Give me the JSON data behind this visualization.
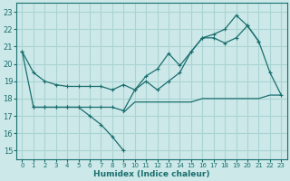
{
  "bg_color": "#cce8e8",
  "grid_color": "#aad4d4",
  "line_color": "#1a6e6e",
  "xlabel": "Humidex (Indice chaleur)",
  "xlim": [
    -0.5,
    23.5
  ],
  "ylim": [
    14.5,
    23.5
  ],
  "yticks": [
    15,
    16,
    17,
    18,
    19,
    20,
    21,
    22,
    23
  ],
  "xticks": [
    0,
    1,
    2,
    3,
    4,
    5,
    6,
    7,
    8,
    9,
    10,
    11,
    12,
    13,
    14,
    15,
    16,
    17,
    18,
    19,
    20,
    21,
    22,
    23
  ],
  "series1_x": [
    0,
    1,
    2,
    3,
    4,
    5,
    6,
    7,
    8,
    9,
    10,
    11,
    12,
    13,
    14,
    15,
    16,
    17,
    18,
    19,
    20,
    21,
    22,
    23
  ],
  "series1_y": [
    20.7,
    19.5,
    19.0,
    18.8,
    18.7,
    18.7,
    18.7,
    18.7,
    18.5,
    18.8,
    18.5,
    19.0,
    18.5,
    19.0,
    19.5,
    20.7,
    21.5,
    21.5,
    21.2,
    21.5,
    22.2,
    21.3,
    19.5,
    18.2
  ],
  "series2_x": [
    0,
    1,
    2,
    3,
    4,
    5,
    6,
    7,
    8,
    9
  ],
  "series2_y": [
    20.7,
    17.5,
    17.5,
    17.5,
    17.5,
    17.5,
    17.0,
    16.5,
    15.8,
    15.0
  ],
  "series3_x": [
    9,
    10,
    11,
    12,
    13,
    14,
    15,
    16,
    17,
    18,
    19,
    20,
    21,
    22,
    23
  ],
  "series3_y": [
    17.2,
    17.8,
    17.8,
    17.8,
    17.8,
    17.8,
    17.8,
    18.0,
    18.0,
    18.0,
    18.0,
    18.0,
    18.0,
    18.2,
    18.2
  ],
  "series4_x": [
    1,
    2,
    3,
    4,
    5,
    6,
    7,
    8,
    9,
    10,
    11,
    12,
    13,
    14,
    15,
    16,
    17,
    18,
    19,
    20,
    21
  ],
  "series4_y": [
    17.5,
    17.5,
    17.5,
    17.5,
    17.5,
    17.5,
    17.5,
    17.5,
    17.3,
    18.5,
    19.3,
    19.7,
    20.6,
    19.9,
    20.7,
    21.5,
    21.7,
    22.0,
    22.8,
    22.2,
    21.3
  ]
}
